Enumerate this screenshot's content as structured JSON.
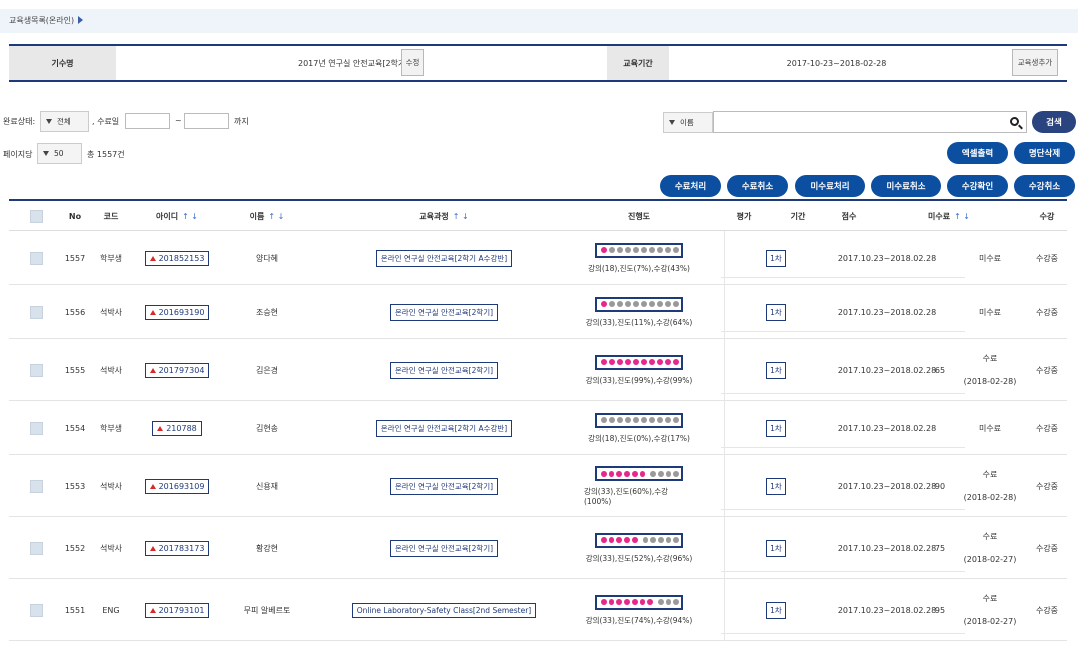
{
  "breadcrumb": {
    "title": "교육생목록(온라인)"
  },
  "info": {
    "batch_label": "기수명",
    "batch_value": "2017년 연구실 안전교육[2학기]",
    "edit_button": "수정",
    "period_label": "교육기간",
    "period_value": "2017-10-23~2018-02-28",
    "add_button": "교육생추가"
  },
  "filters": {
    "status_label": "완료상태:",
    "status_value": "전체",
    "date_label": ", 수료일",
    "date_from": "",
    "date_tilde": "~",
    "date_to": "",
    "date_until": "까지",
    "search_field_select": "이름",
    "search_value": "",
    "search_button": "검색",
    "per_page_label": "페이지당",
    "per_page_value": "50",
    "total_text": "총 1557건"
  },
  "actions": {
    "excel_button": "엑셀출력",
    "delete_list_button": "명단삭제",
    "complete_button": "수료처리",
    "cancel_complete_button": "수료취소",
    "incomplete_button": "미수료처리",
    "cancel_incomplete_button": "미수료취소",
    "confirm_enroll_button": "수강확인",
    "cancel_enroll_button": "수강취소"
  },
  "table": {
    "headers": {
      "no": "No",
      "code": "코드",
      "id": "아이디",
      "name": "이름",
      "course": "교육과정",
      "progress": "진행도",
      "eval": "평가",
      "period": "기간",
      "score": "점수",
      "incomplete": "미수료",
      "enroll": "수강"
    },
    "sort_arrows": "↑ ↓",
    "rows": [
      {
        "no": "1557",
        "code": "학부생",
        "id": "201852153",
        "name": "양다혜",
        "course": "온라인 연구실 안전교육[2학기 A수강반]",
        "dots_on": 1,
        "progress_text": "강의(18),진도(7%),수강(43%)",
        "eval": "1차",
        "period": "2017.10.23~2018.02.28",
        "score": "",
        "status": "미수료",
        "status_date": "",
        "enroll": "수강중"
      },
      {
        "no": "1556",
        "code": "석박사",
        "id": "201693190",
        "name": "조승현",
        "course": "온라인 연구실 안전교육[2학기]",
        "dots_on": 1,
        "progress_text": "강의(33),진도(11%),수강(64%)",
        "eval": "1차",
        "period": "2017.10.23~2018.02.28",
        "score": "",
        "status": "미수료",
        "status_date": "",
        "enroll": "수강중"
      },
      {
        "no": "1555",
        "code": "석박사",
        "id": "201797304",
        "name": "김은경",
        "course": "온라인 연구실 안전교육[2학기]",
        "dots_on": 10,
        "progress_text": "강의(33),진도(99%),수강(99%)",
        "eval": "1차",
        "period": "2017.10.23~2018.02.28",
        "score": "65",
        "status": "수료",
        "status_date": "(2018-02-28)",
        "enroll": "수강중"
      },
      {
        "no": "1554",
        "code": "학부생",
        "id": "210788",
        "name": "김현송",
        "course": "온라인 연구실 안전교육[2학기 A수강반]",
        "dots_on": 0,
        "progress_text": "강의(18),진도(0%),수강(17%)",
        "eval": "1차",
        "period": "2017.10.23~2018.02.28",
        "score": "",
        "status": "미수료",
        "status_date": "",
        "enroll": "수강중"
      },
      {
        "no": "1553",
        "code": "석박사",
        "id": "201693109",
        "name": "신용재",
        "course": "온라인 연구실 안전교육[2학기]",
        "dots_on": 6,
        "progress_text": "강의(33),진도(60%),수강(100%)",
        "eval": "1차",
        "period": "2017.10.23~2018.02.28",
        "score": "90",
        "status": "수료",
        "status_date": "(2018-02-28)",
        "enroll": "수강중"
      },
      {
        "no": "1552",
        "code": "석박사",
        "id": "201783173",
        "name": "황강현",
        "course": "온라인 연구실 안전교육[2학기]",
        "dots_on": 5,
        "progress_text": "강의(33),진도(52%),수강(96%)",
        "eval": "1차",
        "period": "2017.10.23~2018.02.28",
        "score": "75",
        "status": "수료",
        "status_date": "(2018-02-27)",
        "enroll": "수강중"
      },
      {
        "no": "1551",
        "code": "ENG",
        "id": "201793101",
        "name": "무피 알베르토",
        "course": "Online Laboratory-Safety Class[2nd Semester]",
        "dots_on": 7,
        "progress_text": "강의(33),진도(74%),수강(94%)",
        "eval": "1차",
        "period": "2017.10.23~2018.02.28",
        "score": "95",
        "status": "수료",
        "status_date": "(2018-02-27)",
        "enroll": "수강중"
      }
    ]
  },
  "colors": {
    "primary": "#0c4fa0",
    "dark_navy": "#1f3a7a",
    "progress_on": "#e8278a",
    "progress_off": "#9a9a9a",
    "sort_arrow": "#3a6fc8",
    "id_marker": "#d62a2a"
  }
}
